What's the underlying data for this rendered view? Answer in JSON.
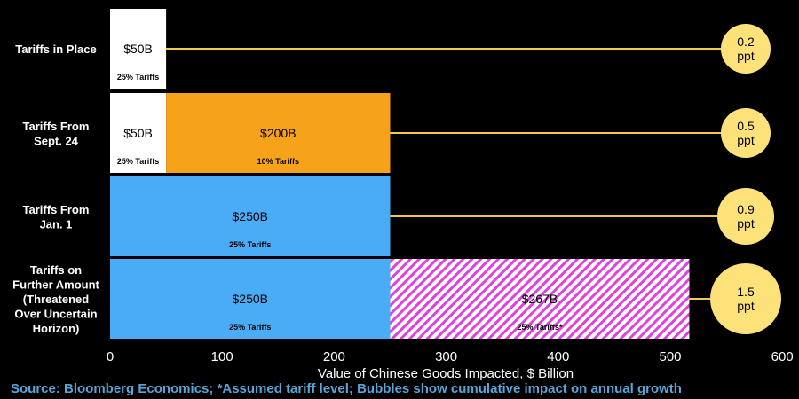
{
  "chart_data": {
    "type": "bar",
    "orientation": "horizontal",
    "stacked": true,
    "xlabel": "Value of Chinese Goods Impacted, $ Billion",
    "xlim": [
      0,
      600
    ],
    "xticks": [
      "0",
      "100",
      "200",
      "300",
      "400",
      "500",
      "600"
    ],
    "grid": false,
    "categories": [
      [
        "Tariffs in Place"
      ],
      [
        "Tariffs From",
        "Sept. 24"
      ],
      [
        "Tariffs From",
        "Jan. 1"
      ],
      [
        "Tariffs on",
        "Further Amount",
        "(Threatened",
        "Over Uncertain",
        "Horizon)"
      ]
    ],
    "rows": [
      {
        "segments": [
          {
            "value": 50,
            "label": "$50B",
            "sublabel": "25% Tariffs",
            "color": "#ffffff",
            "text_color": "#000000"
          }
        ],
        "bubble": [
          "0.2",
          "ppt"
        ],
        "impact": 0.2
      },
      {
        "segments": [
          {
            "value": 50,
            "label": "$50B",
            "sublabel": "25% Tariffs",
            "color": "#ffffff",
            "text_color": "#000000"
          },
          {
            "value": 200,
            "label": "$200B",
            "sublabel": "10% Tariffs",
            "color": "#f7a21b",
            "text_color": "#000000"
          }
        ],
        "bubble": [
          "0.5",
          "ppt"
        ],
        "impact": 0.5
      },
      {
        "segments": [
          {
            "value": 250,
            "label": "$250B",
            "sublabel": "25% Tariffs",
            "color": "#4aabf7",
            "text_color": "#000000"
          }
        ],
        "bubble": [
          "0.9",
          "ppt"
        ],
        "impact": 0.9
      },
      {
        "segments": [
          {
            "value": 250,
            "label": "$250B",
            "sublabel": "25% Tariffs",
            "color": "#4aabf7",
            "text_color": "#000000"
          },
          {
            "value": 267,
            "label": "$267B",
            "sublabel": "25% Tariffs*",
            "color": "#e040e0",
            "hatched": true,
            "text_color": "#000000"
          }
        ],
        "bubble": [
          "1.5",
          "ppt"
        ],
        "impact": 1.5
      }
    ],
    "bubble_color": "#fde27a",
    "connector_color": "#f2c94c"
  },
  "source": "Source: Bloomberg Economics; *Assumed tariff level; Bubbles show cumulative impact on annual growth"
}
